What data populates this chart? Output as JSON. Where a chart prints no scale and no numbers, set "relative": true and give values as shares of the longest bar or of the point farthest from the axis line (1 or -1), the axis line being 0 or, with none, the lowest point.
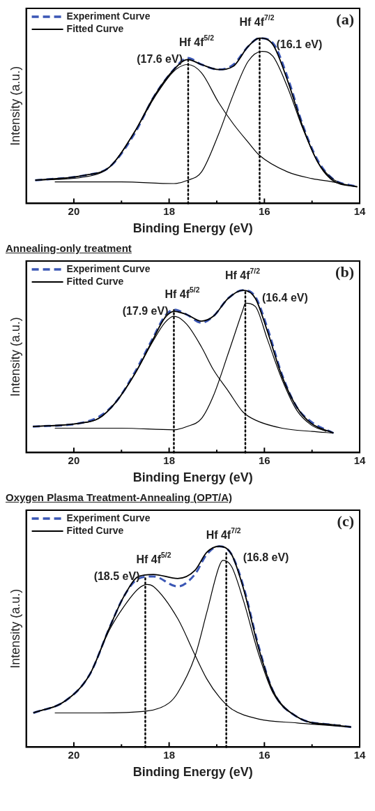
{
  "chart_data": [
    {
      "type": "line",
      "relative": true,
      "xlabel": "Binding Energy (eV)",
      "ylabel": "Intensity (a.u.)",
      "xlim": [
        21,
        14
      ],
      "xticks": [
        20,
        {
          "value": 19,
          "label": null
        },
        18,
        {
          "value": 17,
          "label": null
        },
        16,
        {
          "value": 15,
          "label": null
        },
        14
      ],
      "grid": false,
      "legend": "top left",
      "series": [
        {
          "name": "Fitted Curve",
          "color": "#000000",
          "line_style": "solid",
          "x": [
            20.81,
            19.77,
            19.25,
            18.73,
            18.31,
            17.9,
            17.61,
            17.32,
            16.96,
            16.65,
            16.34,
            16.1,
            15.82,
            15.51,
            15.19,
            14.88,
            14.57,
            14.05
          ],
          "values": [
            0.14,
            0.17,
            0.22,
            0.43,
            0.65,
            0.81,
            0.87,
            0.84,
            0.81,
            0.83,
            0.95,
            1.0,
            0.96,
            0.74,
            0.46,
            0.25,
            0.14,
            0.1
          ]
        },
        {
          "color": "#000000",
          "line_style": "solid",
          "x": [
            20.81,
            19.77,
            19.25,
            18.73,
            18.31,
            17.9,
            17.61,
            17.32,
            16.96,
            16.65,
            16.34,
            16.1,
            15.51,
            15.0,
            14.57,
            14.05
          ],
          "values": [
            0.14,
            0.16,
            0.22,
            0.43,
            0.64,
            0.8,
            0.84,
            0.79,
            0.61,
            0.48,
            0.37,
            0.29,
            0.19,
            0.15,
            0.13,
            0.1
          ]
        },
        {
          "color": "#000000",
          "line_style": "solid",
          "x": [
            20.4,
            19.0,
            17.9,
            17.61,
            17.32,
            16.96,
            16.65,
            16.34,
            16.05,
            15.82,
            15.51,
            15.19,
            14.88,
            14.57,
            14.3
          ],
          "values": [
            0.13,
            0.13,
            0.12,
            0.14,
            0.19,
            0.42,
            0.66,
            0.86,
            0.92,
            0.89,
            0.7,
            0.45,
            0.25,
            0.15,
            0.11
          ]
        },
        {
          "name": "Experiment Curve",
          "color": "#3b57b5",
          "line_style": "dashed",
          "x": [
            20.81,
            19.77,
            19.25,
            18.73,
            18.31,
            17.9,
            17.61,
            17.32,
            16.96,
            16.65,
            16.34,
            16.1,
            15.82,
            15.51,
            15.19,
            14.88,
            14.57,
            14.05
          ],
          "values": [
            0.14,
            0.17,
            0.22,
            0.42,
            0.65,
            0.81,
            0.88,
            0.84,
            0.81,
            0.84,
            0.95,
            1.0,
            0.97,
            0.76,
            0.47,
            0.26,
            0.15,
            0.1
          ]
        }
      ],
      "ref_lines": [
        {
          "axis": "x",
          "value": 17.6,
          "color": "#000000",
          "line_style": "dotted"
        },
        {
          "axis": "x",
          "value": 16.1,
          "color": "#000000",
          "line_style": "dotted"
        }
      ],
      "annotations": [
        "Hf 4f$^{5/2}$",
        "(17.6 eV)",
        "Hf 4f$^{7/2}$",
        "(16.1 eV)",
        "(a)"
      ]
    },
    {
      "type": "line",
      "relative": true,
      "title": "Annealing-only treatment",
      "xlabel": "Binding Energy (eV)",
      "ylabel": "Intensity (a.u.)",
      "xlim": [
        21,
        14
      ],
      "xticks": [
        20,
        {
          "value": 19,
          "label": null
        },
        18,
        {
          "value": 17,
          "label": null
        },
        16,
        {
          "value": 15,
          "label": null
        },
        14
      ],
      "grid": false,
      "legend": "top left",
      "series": [
        {
          "name": "Fitted Curve",
          "color": "#000000",
          "line_style": "solid",
          "x": [
            20.86,
            19.89,
            19.48,
            19.12,
            18.71,
            18.35,
            18.09,
            17.89,
            17.63,
            17.32,
            17.07,
            16.76,
            16.45,
            16.19,
            15.94,
            15.63,
            15.32,
            15.02,
            14.55
          ],
          "values": [
            0.16,
            0.18,
            0.21,
            0.31,
            0.49,
            0.69,
            0.83,
            0.87,
            0.85,
            0.81,
            0.84,
            0.95,
            1.0,
            0.95,
            0.75,
            0.47,
            0.28,
            0.18,
            0.12
          ]
        },
        {
          "color": "#000000",
          "line_style": "solid",
          "x": [
            20.86,
            19.89,
            19.48,
            19.12,
            18.71,
            18.35,
            18.09,
            17.9,
            17.63,
            17.32,
            17.07,
            16.76,
            16.45,
            16.19,
            15.63,
            15.0,
            14.55
          ],
          "values": [
            0.16,
            0.18,
            0.21,
            0.31,
            0.49,
            0.68,
            0.8,
            0.84,
            0.79,
            0.65,
            0.51,
            0.38,
            0.25,
            0.2,
            0.15,
            0.13,
            0.12
          ]
        },
        {
          "color": "#000000",
          "line_style": "solid",
          "x": [
            20.4,
            19.0,
            17.9,
            17.63,
            17.32,
            17.07,
            16.76,
            16.45,
            16.4,
            16.19,
            15.94,
            15.63,
            15.32,
            15.02,
            14.7
          ],
          "values": [
            0.15,
            0.15,
            0.14,
            0.16,
            0.21,
            0.35,
            0.61,
            0.88,
            0.92,
            0.9,
            0.7,
            0.45,
            0.26,
            0.17,
            0.13
          ]
        },
        {
          "name": "Experiment Curve",
          "color": "#3b57b5",
          "line_style": "dashed",
          "x": [
            20.86,
            19.89,
            19.48,
            19.12,
            18.71,
            18.35,
            18.09,
            17.89,
            17.63,
            17.32,
            17.07,
            16.76,
            16.45,
            16.19,
            15.94,
            15.63,
            15.32,
            15.02,
            14.55
          ],
          "values": [
            0.16,
            0.18,
            0.22,
            0.31,
            0.5,
            0.7,
            0.84,
            0.88,
            0.85,
            0.8,
            0.84,
            0.95,
            1.0,
            0.96,
            0.77,
            0.48,
            0.28,
            0.19,
            0.12
          ]
        }
      ],
      "ref_lines": [
        {
          "axis": "x",
          "value": 17.9,
          "color": "#000000",
          "line_style": "dotted"
        },
        {
          "axis": "x",
          "value": 16.4,
          "color": "#000000",
          "line_style": "dotted"
        }
      ],
      "annotations": [
        "Hf 4f$^{5/2}$",
        "(17.9 eV)",
        "Hf 4f$^{7/2}$",
        "(16.4 eV)",
        "(b)"
      ]
    },
    {
      "type": "line",
      "relative": true,
      "title": "Oxygen Plasma Treatment-Annealing (OPT/A)",
      "xlabel": "Binding Energy (eV)",
      "ylabel": "Intensity (a.u.)",
      "xlim": [
        21,
        14
      ],
      "xticks": [
        20,
        {
          "value": 19,
          "label": null
        },
        18,
        {
          "value": 17,
          "label": null
        },
        16,
        {
          "value": 15,
          "label": null
        },
        14
      ],
      "grid": false,
      "legend": "top left",
      "series": [
        {
          "name": "Fitted Curve",
          "color": "#000000",
          "line_style": "solid",
          "x": [
            20.85,
            20.18,
            19.67,
            19.26,
            18.95,
            18.64,
            18.33,
            17.82,
            17.46,
            17.21,
            16.95,
            16.69,
            16.44,
            16.13,
            15.82,
            15.31,
            14.54,
            14.18
          ],
          "values": [
            0.17,
            0.23,
            0.36,
            0.59,
            0.75,
            0.85,
            0.86,
            0.84,
            0.88,
            0.97,
            1.0,
            0.96,
            0.79,
            0.5,
            0.28,
            0.15,
            0.11,
            0.1
          ]
        },
        {
          "color": "#000000",
          "line_style": "solid",
          "x": [
            20.85,
            20.18,
            19.67,
            19.26,
            18.95,
            18.64,
            18.46,
            18.33,
            17.82,
            17.46,
            17.21,
            16.95,
            16.69,
            16.13,
            15.31,
            14.18
          ],
          "values": [
            0.17,
            0.23,
            0.36,
            0.58,
            0.7,
            0.79,
            0.81,
            0.8,
            0.64,
            0.46,
            0.34,
            0.25,
            0.19,
            0.14,
            0.12,
            0.1
          ]
        },
        {
          "color": "#000000",
          "line_style": "solid",
          "x": [
            20.4,
            19.5,
            18.46,
            18.0,
            17.82,
            17.46,
            17.21,
            16.95,
            16.87,
            16.69,
            16.44,
            16.13,
            15.82,
            15.31,
            14.54,
            14.4
          ],
          "values": [
            0.17,
            0.17,
            0.18,
            0.22,
            0.27,
            0.45,
            0.67,
            0.9,
            0.93,
            0.9,
            0.73,
            0.47,
            0.27,
            0.15,
            0.11,
            0.11
          ]
        },
        {
          "name": "Experiment Curve",
          "color": "#3b57b5",
          "line_style": "dashed",
          "x": [
            20.85,
            20.18,
            19.67,
            19.26,
            18.95,
            18.64,
            18.33,
            17.82,
            17.46,
            17.21,
            16.95,
            16.69,
            16.44,
            16.13,
            15.82,
            15.31,
            14.54,
            14.18
          ],
          "values": [
            0.17,
            0.23,
            0.36,
            0.59,
            0.75,
            0.84,
            0.85,
            0.8,
            0.86,
            0.96,
            1.0,
            0.96,
            0.8,
            0.51,
            0.28,
            0.15,
            0.11,
            0.1
          ]
        }
      ],
      "ref_lines": [
        {
          "axis": "x",
          "value": 18.5,
          "color": "#000000",
          "line_style": "dotted"
        },
        {
          "axis": "x",
          "value": 16.8,
          "color": "#000000",
          "line_style": "dotted"
        }
      ],
      "annotations": [
        "Hf 4f$^{5/2}$",
        "(18.5 eV)",
        "Hf 4f$^{7/2}$",
        "(16.8 eV)",
        "(c)"
      ]
    }
  ]
}
